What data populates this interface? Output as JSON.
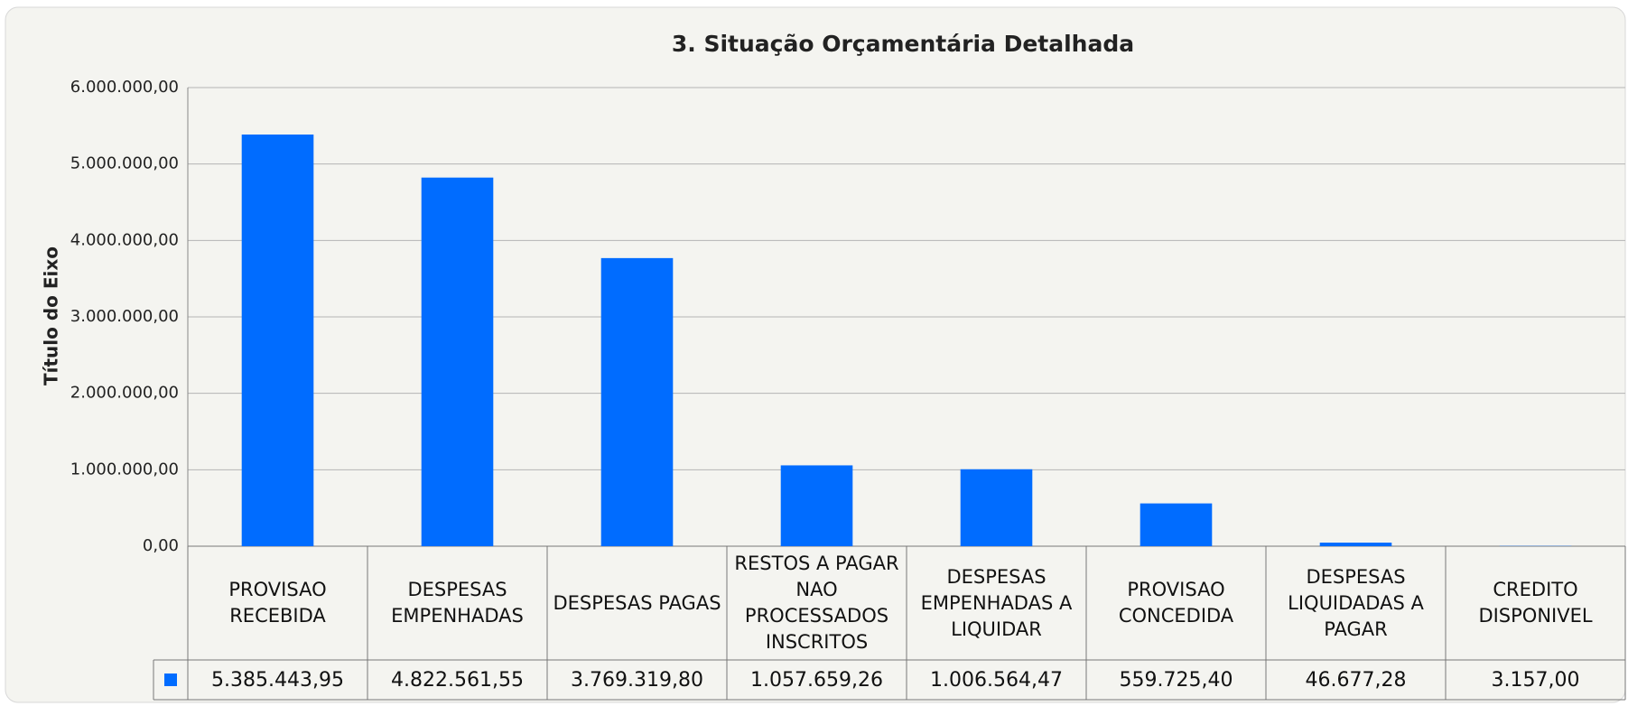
{
  "chart_data": {
    "type": "bar",
    "title": "3. Situação Orçamentária Detalhada",
    "y_label": "Título do Eixo",
    "categories": [
      "PROVISAO RECEBIDA",
      "DESPESAS EMPENHADAS",
      "DESPESAS PAGAS",
      "RESTOS A PAGAR NAO PROCESSADOS INSCRITOS",
      "DESPESAS EMPENHADAS A LIQUIDAR",
      "PROVISAO CONCEDIDA",
      "DESPESAS LIQUIDADAS A PAGAR",
      "CREDITO DISPONIVEL"
    ],
    "values": [
      5385443.95,
      4822561.55,
      3769319.8,
      1057659.26,
      1006564.47,
      559725.4,
      46677.28,
      3157.0
    ],
    "value_labels": [
      "5.385.443,95",
      "4.822.561,55",
      "3.769.319,80",
      "1.057.659,26",
      "1.006.564,47",
      "559.725,40",
      "46.677,28",
      "3.157,00"
    ],
    "color": "#006cff",
    "ylim": [
      0,
      6000000
    ],
    "yticks": [
      {
        "value": 0,
        "label": "0,00"
      },
      {
        "value": 1000000,
        "label": "1.000.000,00"
      },
      {
        "value": 2000000,
        "label": "2.000.000,00"
      },
      {
        "value": 3000000,
        "label": "3.000.000,00"
      },
      {
        "value": 4000000,
        "label": "4.000.000,00"
      },
      {
        "value": 5000000,
        "label": "5.000.000,00"
      },
      {
        "value": 6000000,
        "label": "6.000.000,00"
      }
    ],
    "grid": true
  }
}
